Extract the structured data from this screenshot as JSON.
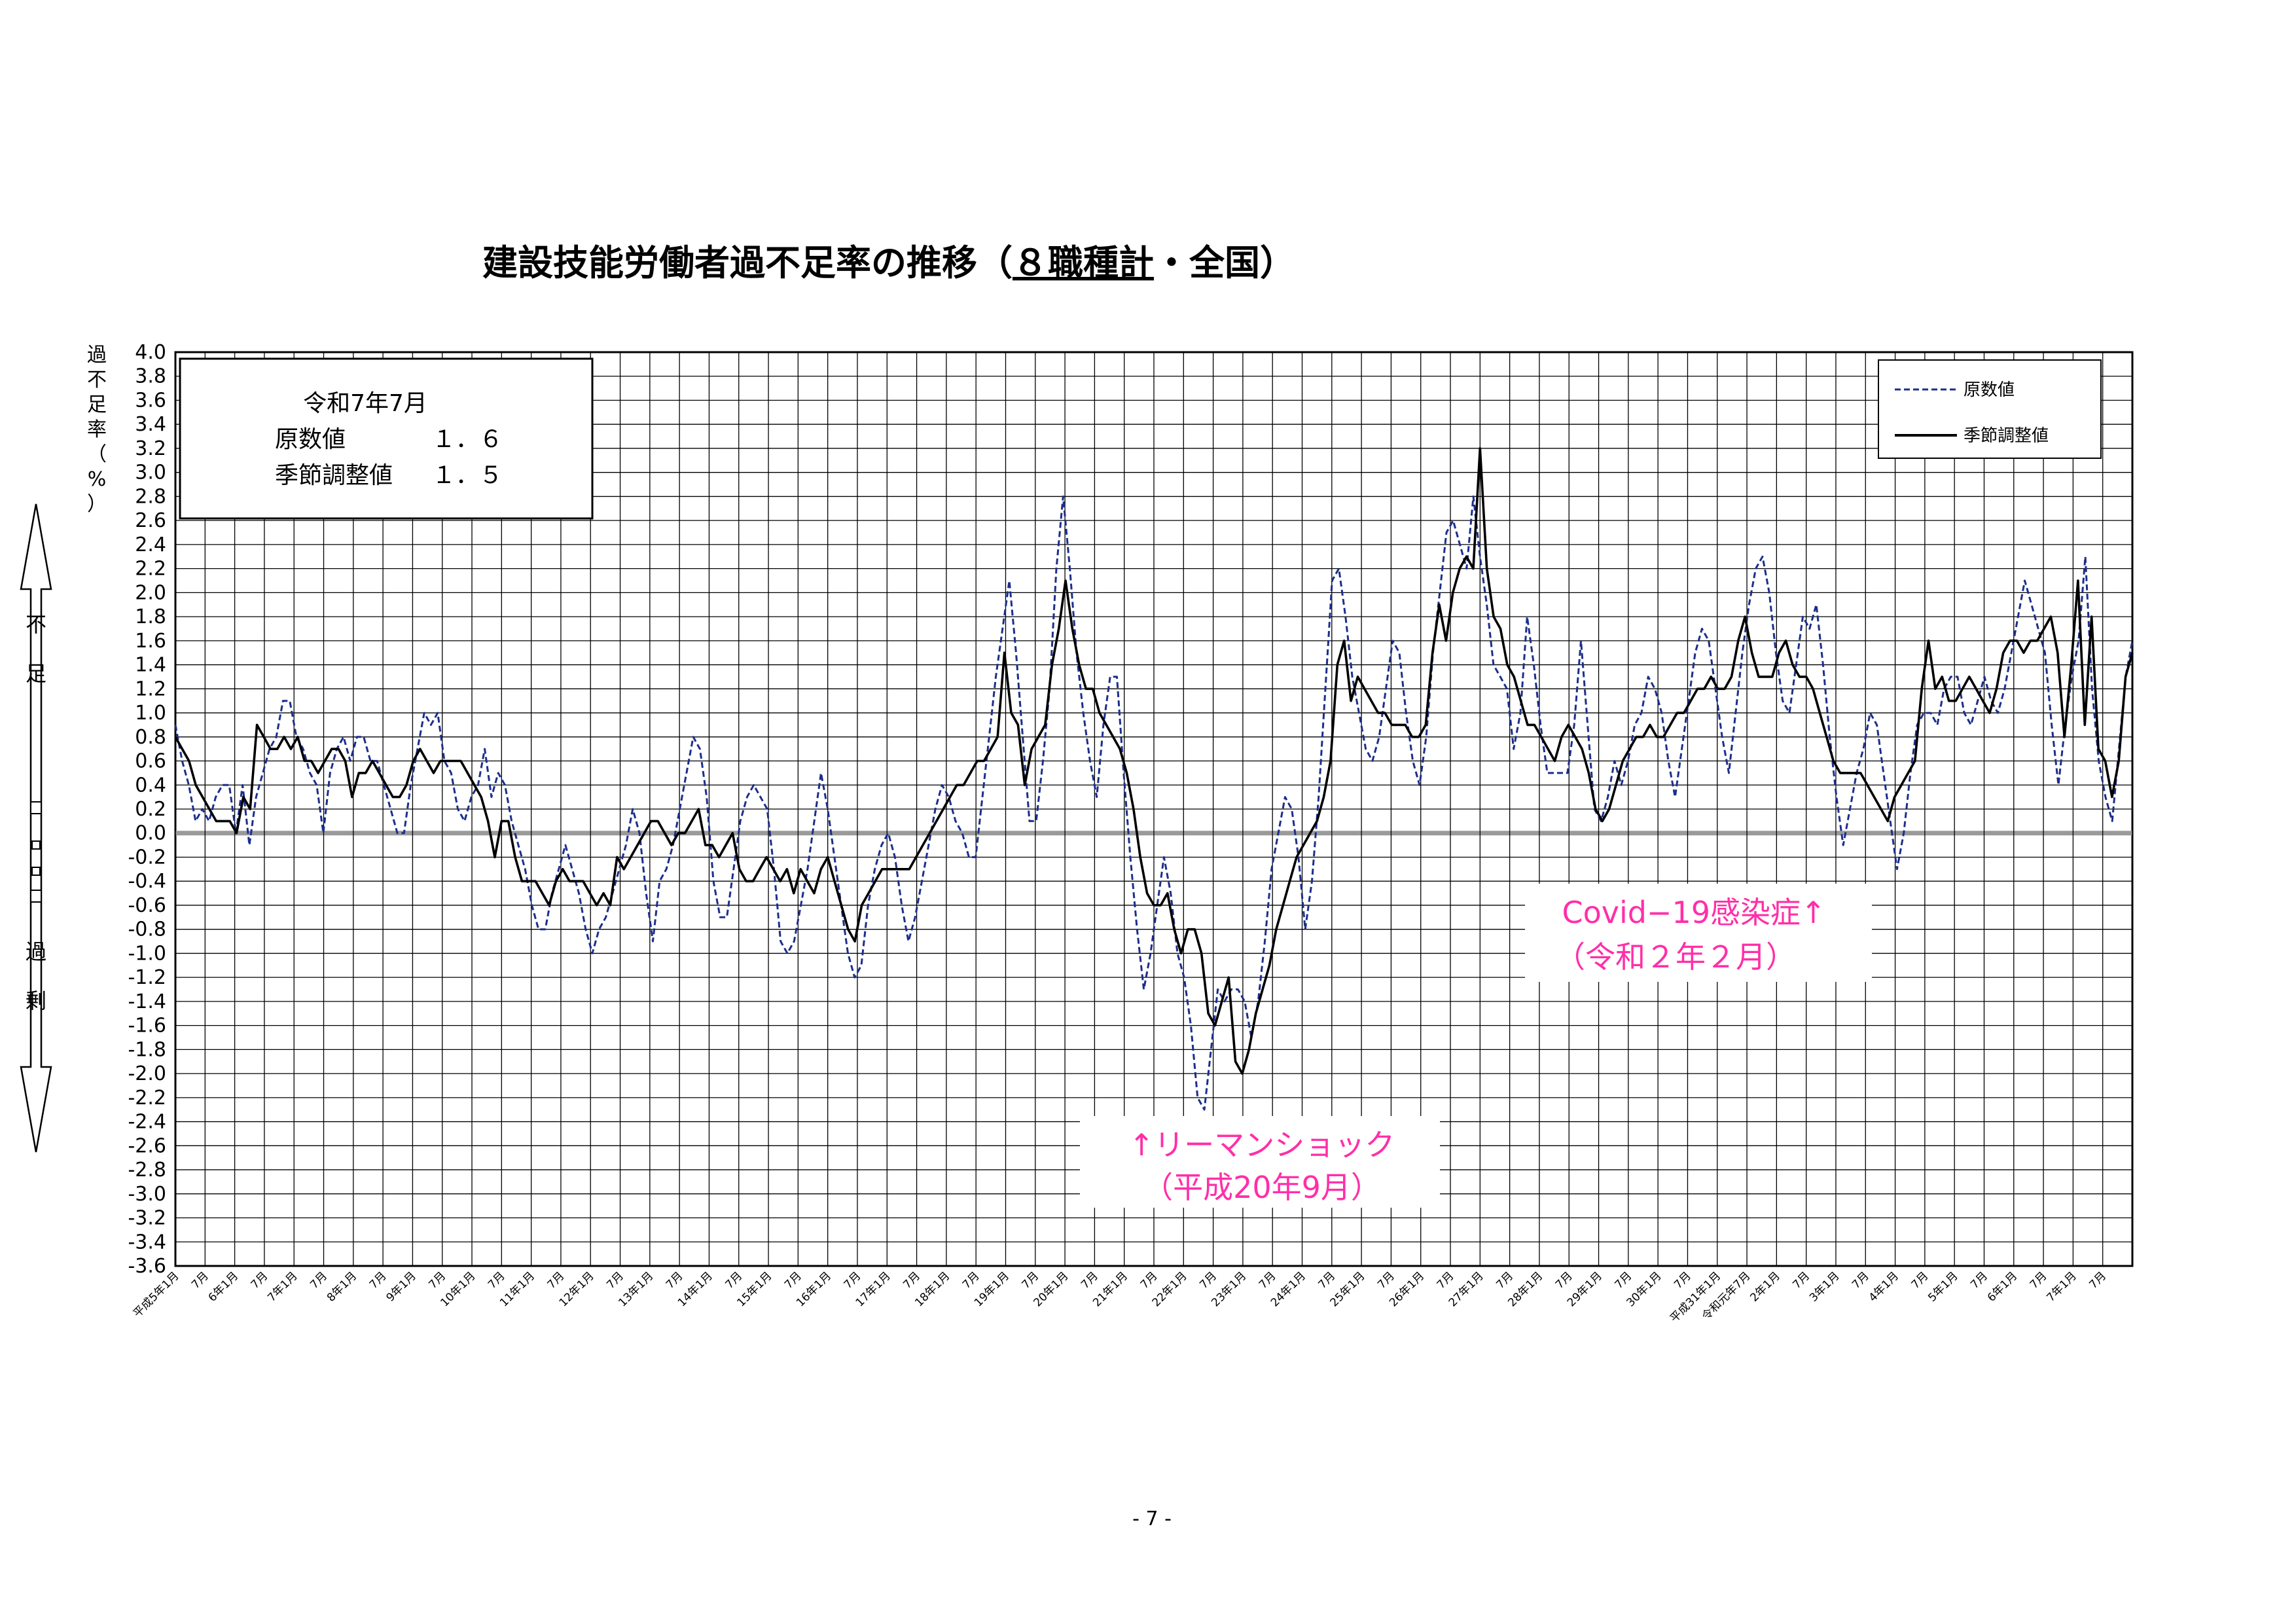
{
  "page": {
    "page_number": "- 7 -"
  },
  "chart_data": {
    "type": "line",
    "title": "建設技能労働者過不足率の推移（８職種計・全国）",
    "title_parts": {
      "pre": "建設技能労働者過不足率の推移（",
      "underlined": "８職種計",
      "post": "・全国）"
    },
    "ylabel": "過不足率（%）",
    "ylabel_chars": [
      "過",
      "不",
      "足",
      "率",
      "（",
      "%",
      "）"
    ],
    "ylim": [
      -3.6,
      4.0
    ],
    "y_step": 0.2,
    "grid": true,
    "side_labels": {
      "shortage": [
        "不",
        "足"
      ],
      "surplus": [
        "過",
        "剰"
      ]
    },
    "x_tick_labels": [
      "平成5年1月",
      "7月",
      "6年1月",
      "7月",
      "7年1月",
      "7月",
      "8年1月",
      "7月",
      "9年1月",
      "7月",
      "10年1月",
      "7月",
      "11年1月",
      "7月",
      "12年1月",
      "7月",
      "13年1月",
      "7月",
      "14年1月",
      "7月",
      "15年1月",
      "7月",
      "16年1月",
      "7月",
      "17年1月",
      "7月",
      "18年1月",
      "7月",
      "19年1月",
      "7月",
      "20年1月",
      "7月",
      "21年1月",
      "7月",
      "22年1月",
      "7月",
      "23年1月",
      "7月",
      "24年1月",
      "7月",
      "25年1月",
      "7月",
      "26年1月",
      "7月",
      "27年1月",
      "7月",
      "28年1月",
      "7月",
      "29年1月",
      "7月",
      "30年1月",
      "7月",
      "平成31年1月",
      "令和元年7月",
      "2年1月",
      "7月",
      "3年1月",
      "7月",
      "4年1月",
      "7月",
      "5年1月",
      "7月",
      "6年1月",
      "7月",
      "7年1月",
      "7月"
    ],
    "legend": {
      "position": "top-right",
      "entries": [
        "原数値",
        "季節調整値"
      ]
    },
    "series_colors": {
      "raw": "#1c2e8c",
      "seasonal": "#000000"
    },
    "series": [
      {
        "name": "原数値",
        "style": "dashed",
        "values": [
          0.9,
          0.6,
          0.4,
          0.1,
          0.2,
          0.1,
          0.3,
          0.4,
          0.4,
          0.0,
          0.4,
          -0.1,
          0.3,
          0.5,
          0.7,
          0.8,
          1.1,
          1.1,
          0.8,
          0.7,
          0.5,
          0.4,
          0.0,
          0.5,
          0.7,
          0.8,
          0.6,
          0.8,
          0.8,
          0.6,
          0.6,
          0.4,
          0.2,
          0.0,
          0.0,
          0.4,
          0.7,
          1.0,
          0.9,
          1.0,
          0.6,
          0.5,
          0.2,
          0.1,
          0.3,
          0.4,
          0.7,
          0.3,
          0.5,
          0.4,
          0.1,
          -0.1,
          -0.3,
          -0.6,
          -0.8,
          -0.8,
          -0.5,
          -0.3,
          -0.1,
          -0.3,
          -0.5,
          -0.8,
          -1.0,
          -0.8,
          -0.7,
          -0.5,
          -0.3,
          -0.1,
          0.2,
          0.0,
          -0.5,
          -0.9,
          -0.4,
          -0.3,
          -0.1,
          0.2,
          0.5,
          0.8,
          0.7,
          0.3,
          -0.4,
          -0.7,
          -0.7,
          -0.3,
          0.1,
          0.3,
          0.4,
          0.3,
          0.2,
          -0.3,
          -0.9,
          -1.0,
          -0.9,
          -0.6,
          -0.3,
          0.1,
          0.5,
          0.2,
          -0.2,
          -0.6,
          -1.0,
          -1.2,
          -1.1,
          -0.6,
          -0.3,
          -0.1,
          0.0,
          -0.2,
          -0.6,
          -0.9,
          -0.7,
          -0.4,
          -0.1,
          0.2,
          0.4,
          0.3,
          0.1,
          0.0,
          -0.2,
          -0.2,
          0.3,
          0.8,
          1.3,
          1.7,
          2.1,
          1.5,
          0.8,
          0.1,
          0.1,
          0.6,
          1.2,
          2.2,
          2.8,
          2.2,
          1.5,
          1.0,
          0.6,
          0.3,
          0.9,
          1.3,
          1.3,
          0.5,
          -0.2,
          -0.8,
          -1.3,
          -1.0,
          -0.6,
          -0.2,
          -0.5,
          -1.0,
          -1.2,
          -1.6,
          -2.2,
          -2.3,
          -1.8,
          -1.3,
          -1.4,
          -1.3,
          -1.3,
          -1.4,
          -1.7,
          -1.4,
          -0.9,
          -0.3,
          0.0,
          0.3,
          0.2,
          -0.2,
          -0.8,
          -0.4,
          0.3,
          1.2,
          2.1,
          2.2,
          1.8,
          1.3,
          1.0,
          0.7,
          0.6,
          0.8,
          1.2,
          1.6,
          1.5,
          1.0,
          0.6,
          0.4,
          0.8,
          1.5,
          2.0,
          2.5,
          2.6,
          2.4,
          2.2,
          2.8,
          2.3,
          1.9,
          1.4,
          1.3,
          1.2,
          0.7,
          1.0,
          1.8,
          1.4,
          0.9,
          0.5,
          0.5,
          0.5,
          0.5,
          0.9,
          1.6,
          0.9,
          0.2,
          0.1,
          0.3,
          0.6,
          0.4,
          0.6,
          0.9,
          1.0,
          1.3,
          1.2,
          1.0,
          0.6,
          0.3,
          0.7,
          1.1,
          1.5,
          1.7,
          1.6,
          1.2,
          0.8,
          0.5,
          1.0,
          1.5,
          1.9,
          2.2,
          2.3,
          2.0,
          1.5,
          1.1,
          1.0,
          1.4,
          1.8,
          1.7,
          1.9,
          1.4,
          0.8,
          0.3,
          -0.1,
          0.2,
          0.5,
          0.7,
          1.0,
          0.9,
          0.5,
          0.1,
          -0.3,
          0.0,
          0.5,
          0.9,
          1.0,
          1.0,
          0.9,
          1.2,
          1.3,
          1.3,
          1.0,
          0.9,
          1.1,
          1.3,
          1.1,
          1.0,
          1.2,
          1.5,
          1.8,
          2.1,
          1.9,
          1.7,
          1.5,
          0.9,
          0.4,
          0.9,
          1.3,
          1.6,
          2.3,
          1.2,
          0.6,
          0.3,
          0.1,
          0.7,
          1.3,
          1.6
        ]
      },
      {
        "name": "季節調整値",
        "style": "solid",
        "values": [
          0.8,
          0.7,
          0.6,
          0.4,
          0.3,
          0.2,
          0.1,
          0.1,
          0.1,
          0.0,
          0.3,
          0.2,
          0.9,
          0.8,
          0.7,
          0.7,
          0.8,
          0.7,
          0.8,
          0.6,
          0.6,
          0.5,
          0.6,
          0.7,
          0.7,
          0.6,
          0.3,
          0.5,
          0.5,
          0.6,
          0.5,
          0.4,
          0.3,
          0.3,
          0.4,
          0.6,
          0.7,
          0.6,
          0.5,
          0.6,
          0.6,
          0.6,
          0.6,
          0.5,
          0.4,
          0.3,
          0.1,
          -0.2,
          0.1,
          0.1,
          -0.2,
          -0.4,
          -0.4,
          -0.4,
          -0.5,
          -0.6,
          -0.4,
          -0.3,
          -0.4,
          -0.4,
          -0.4,
          -0.5,
          -0.6,
          -0.5,
          -0.6,
          -0.2,
          -0.3,
          -0.2,
          -0.1,
          0.0,
          0.1,
          0.1,
          0.0,
          -0.1,
          0.0,
          0.0,
          0.1,
          0.2,
          -0.1,
          -0.1,
          -0.2,
          -0.1,
          0.0,
          -0.3,
          -0.4,
          -0.4,
          -0.3,
          -0.2,
          -0.3,
          -0.4,
          -0.3,
          -0.5,
          -0.3,
          -0.4,
          -0.5,
          -0.3,
          -0.2,
          -0.4,
          -0.6,
          -0.8,
          -0.9,
          -0.6,
          -0.5,
          -0.4,
          -0.3,
          -0.3,
          -0.3,
          -0.3,
          -0.3,
          -0.2,
          -0.1,
          0.0,
          0.1,
          0.2,
          0.3,
          0.4,
          0.4,
          0.5,
          0.6,
          0.6,
          0.7,
          0.8,
          1.5,
          1.0,
          0.9,
          0.4,
          0.7,
          0.8,
          0.9,
          1.4,
          1.7,
          2.1,
          1.7,
          1.4,
          1.2,
          1.2,
          1.0,
          0.9,
          0.8,
          0.7,
          0.5,
          0.2,
          -0.2,
          -0.5,
          -0.6,
          -0.6,
          -0.5,
          -0.8,
          -1.0,
          -0.8,
          -0.8,
          -1.0,
          -1.5,
          -1.6,
          -1.4,
          -1.2,
          -1.9,
          -2.0,
          -1.8,
          -1.5,
          -1.3,
          -1.1,
          -0.8,
          -0.6,
          -0.4,
          -0.2,
          -0.1,
          0.0,
          0.1,
          0.3,
          0.6,
          1.4,
          1.6,
          1.1,
          1.3,
          1.2,
          1.1,
          1.0,
          1.0,
          0.9,
          0.9,
          0.9,
          0.8,
          0.8,
          0.9,
          1.5,
          1.9,
          1.6,
          2.0,
          2.2,
          2.3,
          2.2,
          3.2,
          2.2,
          1.8,
          1.7,
          1.4,
          1.3,
          1.1,
          0.9,
          0.9,
          0.8,
          0.7,
          0.6,
          0.8,
          0.9,
          0.8,
          0.7,
          0.5,
          0.2,
          0.1,
          0.2,
          0.4,
          0.6,
          0.7,
          0.8,
          0.8,
          0.9,
          0.8,
          0.8,
          0.9,
          1.0,
          1.0,
          1.1,
          1.2,
          1.2,
          1.3,
          1.2,
          1.2,
          1.3,
          1.6,
          1.8,
          1.5,
          1.3,
          1.3,
          1.3,
          1.5,
          1.6,
          1.4,
          1.3,
          1.3,
          1.2,
          1.0,
          0.8,
          0.6,
          0.5,
          0.5,
          0.5,
          0.5,
          0.4,
          0.3,
          0.2,
          0.1,
          0.3,
          0.4,
          0.5,
          0.6,
          1.2,
          1.6,
          1.2,
          1.3,
          1.1,
          1.1,
          1.2,
          1.3,
          1.2,
          1.1,
          1.0,
          1.2,
          1.5,
          1.6,
          1.6,
          1.5,
          1.6,
          1.6,
          1.7,
          1.8,
          1.5,
          0.8,
          1.4,
          2.1,
          0.9,
          1.8,
          0.7,
          0.6,
          0.3,
          0.6,
          1.3,
          1.5
        ]
      }
    ],
    "annotations": {
      "note_box": {
        "title": "令和7年7月",
        "rows": [
          {
            "label": "原数値",
            "value": "１．６"
          },
          {
            "label": "季節調整値",
            "value": "１．５"
          }
        ]
      },
      "lehman": {
        "line1": "↑リーマンショック",
        "line2": "（平成20年9月）"
      },
      "covid": {
        "line1": "Covid−19感染症↑",
        "line2": "（令和２年２月）"
      }
    }
  }
}
